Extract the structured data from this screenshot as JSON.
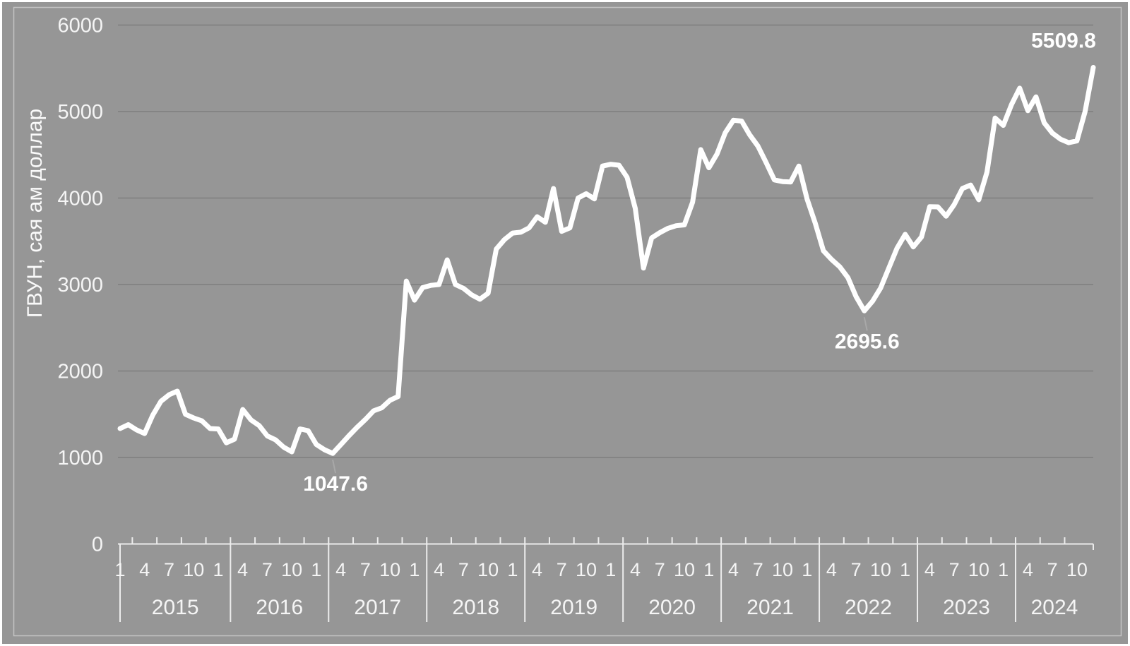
{
  "chart_data": {
    "type": "line",
    "title": "",
    "ylabel": "ГВУН, сая ам доллар",
    "xlabel": "",
    "ylim": [
      0,
      6000
    ],
    "y_ticks": [
      0,
      1000,
      2000,
      3000,
      4000,
      5000,
      6000
    ],
    "x_start": "2015-01",
    "x_end": "2024-12",
    "frequency": "monthly",
    "years": [
      "2015",
      "2016",
      "2017",
      "2018",
      "2019",
      "2020",
      "2021",
      "2022",
      "2023",
      "2024"
    ],
    "quarter_labels": [
      "1",
      "4",
      "7",
      "10"
    ],
    "grid": "horizontal",
    "legend_position": "none",
    "values": [
      1335,
      1380,
      1320,
      1277,
      1490,
      1650,
      1726,
      1767,
      1500,
      1457,
      1424,
      1335,
      1330,
      1170,
      1212,
      1555,
      1435,
      1370,
      1250,
      1205,
      1120,
      1065,
      1330,
      1310,
      1150,
      1090,
      1047.6,
      1150,
      1253,
      1350,
      1440,
      1540,
      1575,
      1660,
      1705,
      3040,
      2820,
      2965,
      2990,
      3000,
      3285,
      3000,
      2955,
      2880,
      2830,
      2900,
      3410,
      3520,
      3595,
      3605,
      3655,
      3784,
      3720,
      4110,
      3615,
      3655,
      4000,
      4050,
      3990,
      4370,
      4390,
      4380,
      4240,
      3880,
      3190,
      3540,
      3600,
      3650,
      3680,
      3690,
      3950,
      4560,
      4350,
      4510,
      4755,
      4900,
      4890,
      4730,
      4600,
      4410,
      4210,
      4190,
      4185,
      4370,
      3990,
      3710,
      3390,
      3290,
      3205,
      3080,
      2860,
      2695.6,
      2805,
      2960,
      3190,
      3420,
      3580,
      3435,
      3550,
      3900,
      3898,
      3790,
      3925,
      4110,
      4150,
      3980,
      4300,
      4925,
      4840,
      5080,
      5270,
      5010,
      5170,
      4870,
      4750,
      4680,
      4640,
      4660,
      5000,
      5509.8
    ],
    "annotations": [
      {
        "text": "1047.6",
        "index": 26,
        "placement": "below"
      },
      {
        "text": "2695.6",
        "index": 91,
        "placement": "below"
      },
      {
        "text": "5509.8",
        "index": 119,
        "placement": "above"
      }
    ],
    "colors": {
      "background": "#969696",
      "line": "#ffffff",
      "gridline": "#7e7e7e",
      "axis": "#ececec",
      "text": "#f5f5f5",
      "annotation_text": "#ffffff",
      "leader": "#a8a8a8",
      "frame": "#c3c3c3",
      "outer_frame": "#ffffff"
    }
  }
}
